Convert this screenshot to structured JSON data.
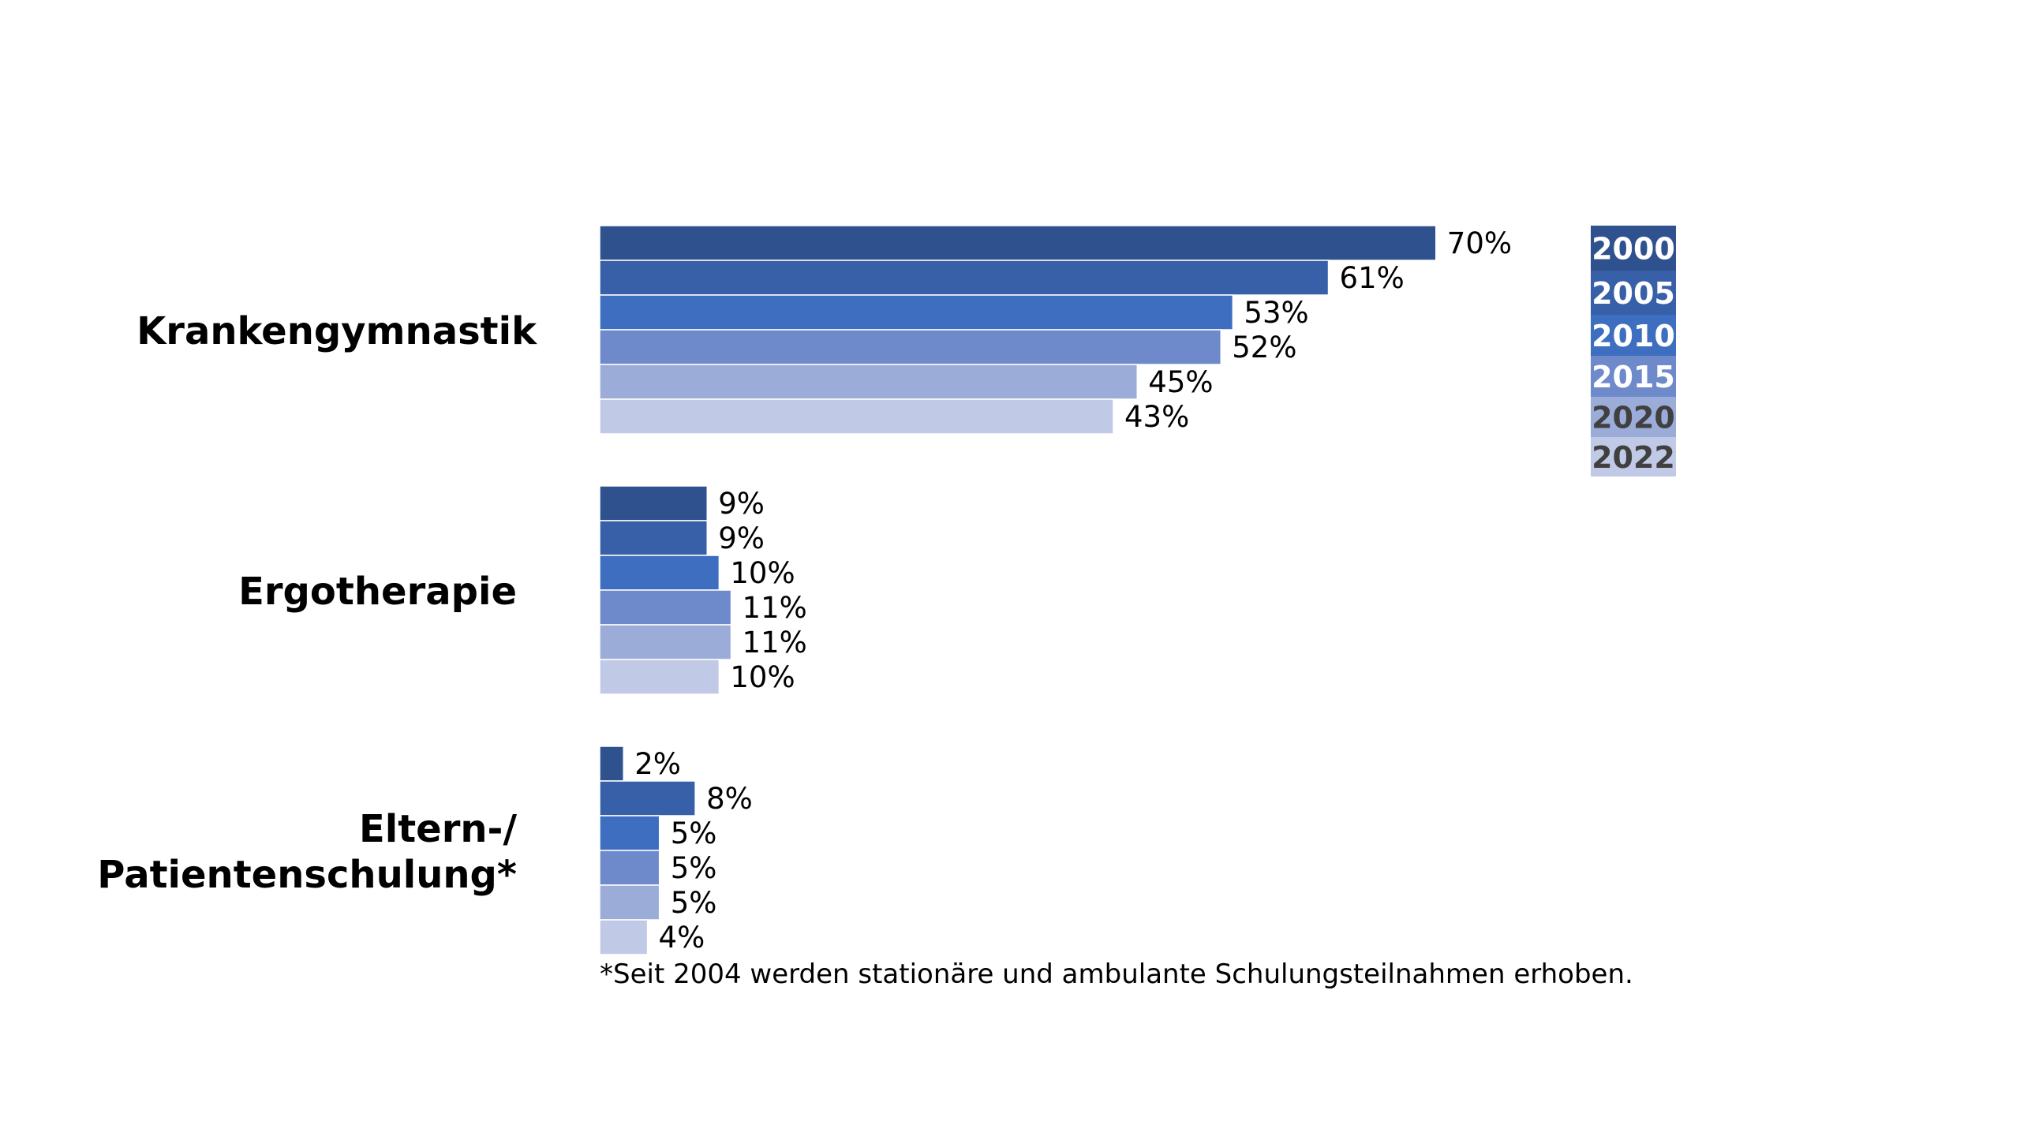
{
  "chart_data": {
    "type": "bar",
    "orientation": "horizontal",
    "title": "",
    "xlabel": "",
    "ylabel": "",
    "categories": [
      [
        "Krankengymnastik"
      ],
      [
        "Ergotherapie"
      ],
      [
        "Eltern-/",
        "Patientenschulung*"
      ]
    ],
    "series": [
      {
        "name": "2000",
        "values": [
          70,
          9,
          2
        ],
        "labels": [
          "70%",
          "9%",
          "2%"
        ],
        "color": "#2f528f",
        "legend_text_color": "#ffffff"
      },
      {
        "name": "2005",
        "values": [
          61,
          9,
          8
        ],
        "labels": [
          "61%",
          "9%",
          "8%"
        ],
        "color": "#3860a8",
        "legend_text_color": "#ffffff"
      },
      {
        "name": "2010",
        "values": [
          53,
          10,
          5
        ],
        "labels": [
          "53%",
          "10%",
          "5%"
        ],
        "color": "#3e6ec0",
        "legend_text_color": "#ffffff"
      },
      {
        "name": "2015",
        "values": [
          52,
          11,
          5
        ],
        "labels": [
          "52%",
          "11%",
          "5%"
        ],
        "color": "#6e8acb",
        "legend_text_color": "#ffffff"
      },
      {
        "name": "2020",
        "values": [
          45,
          11,
          5
        ],
        "labels": [
          "45%",
          "11%",
          "5%"
        ],
        "color": "#9cacd9",
        "legend_text_color": "#404040"
      },
      {
        "name": "2022",
        "values": [
          43,
          10,
          4
        ],
        "labels": [
          "43%",
          "10%",
          "4%"
        ],
        "color": "#c0c9e6",
        "legend_text_color": "#404040"
      }
    ],
    "value_unit": "%",
    "xlim": [
      0,
      70
    ],
    "grid": false,
    "legend_position": "right",
    "footnote": "*Seit 2004 werden stationäre und ambulante Schulungsteilnahmen erhoben."
  }
}
